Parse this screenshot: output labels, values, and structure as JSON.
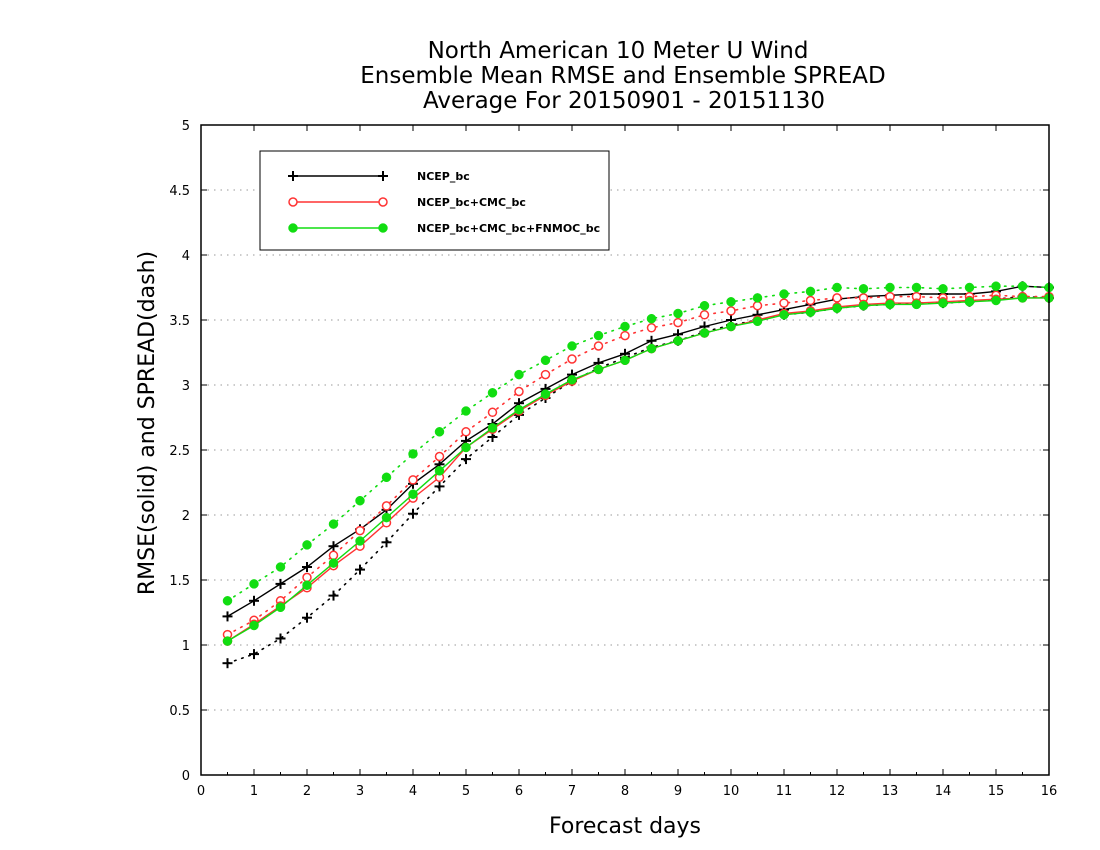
{
  "chart_data": {
    "type": "line",
    "title_lines": [
      "North American 10 Meter U Wind",
      "Ensemble Mean RMSE and Ensemble SPREAD",
      "Average For 20150901 - 20151130"
    ],
    "xlabel": "Forecast days",
    "ylabel": "RMSE(solid) and SPREAD(dash)",
    "xlim": [
      0,
      16
    ],
    "ylim": [
      0,
      5
    ],
    "x_ticks": [
      "0",
      "1",
      "2",
      "3",
      "4",
      "5",
      "6",
      "7",
      "8",
      "9",
      "10",
      "11",
      "12",
      "13",
      "14",
      "15",
      "16"
    ],
    "y_ticks": [
      "0",
      "0.5",
      "1",
      "1.5",
      "2",
      "2.5",
      "3",
      "3.5",
      "4",
      "4.5",
      "5"
    ],
    "grid": "horizontal dotted",
    "legend_position": "top-left",
    "x": [
      0.5,
      1,
      1.5,
      2,
      2.5,
      3,
      3.5,
      4,
      4.5,
      5,
      5.5,
      6,
      6.5,
      7,
      7.5,
      8,
      8.5,
      9,
      9.5,
      10,
      10.5,
      11,
      11.5,
      12,
      12.5,
      13,
      13.5,
      14,
      14.5,
      15,
      15.5,
      16
    ],
    "series": [
      {
        "name": "NCEP_bc",
        "color": "#000000",
        "marker": "plus",
        "rmse": [
          1.22,
          1.34,
          1.47,
          1.6,
          1.76,
          1.89,
          2.04,
          2.24,
          2.39,
          2.57,
          2.7,
          2.86,
          2.97,
          3.08,
          3.17,
          3.24,
          3.34,
          3.39,
          3.45,
          3.5,
          3.54,
          3.58,
          3.62,
          3.66,
          3.68,
          3.69,
          3.7,
          3.7,
          3.7,
          3.72,
          3.76,
          3.75
        ],
        "spread": [
          0.86,
          0.93,
          1.05,
          1.21,
          1.38,
          1.58,
          1.79,
          2.01,
          2.22,
          2.43,
          2.6,
          2.77,
          2.9,
          3.03,
          3.13,
          3.21,
          3.29,
          3.34,
          3.41,
          3.46,
          3.5,
          3.54,
          3.56,
          3.59,
          3.61,
          3.62,
          3.63,
          3.63,
          3.64,
          3.66,
          3.68,
          3.67
        ]
      },
      {
        "name": "NCEP_bc+CMC_bc",
        "color": "#ff3333",
        "marker": "open-circle",
        "rmse": [
          1.03,
          1.16,
          1.3,
          1.44,
          1.61,
          1.76,
          1.94,
          2.13,
          2.29,
          2.52,
          2.66,
          2.8,
          2.92,
          3.03,
          3.12,
          3.19,
          3.28,
          3.34,
          3.4,
          3.45,
          3.5,
          3.55,
          3.57,
          3.6,
          3.62,
          3.63,
          3.63,
          3.64,
          3.65,
          3.66,
          3.67,
          3.67
        ],
        "spread": [
          1.08,
          1.19,
          1.34,
          1.52,
          1.69,
          1.88,
          2.07,
          2.27,
          2.45,
          2.64,
          2.79,
          2.95,
          3.08,
          3.2,
          3.3,
          3.38,
          3.44,
          3.48,
          3.54,
          3.57,
          3.61,
          3.63,
          3.65,
          3.67,
          3.67,
          3.68,
          3.68,
          3.67,
          3.68,
          3.69,
          3.68,
          3.68
        ]
      },
      {
        "name": "NCEP_bc+CMC_bc+FNMOC_bc",
        "color": "#11dd11",
        "marker": "filled-circle",
        "rmse": [
          1.03,
          1.15,
          1.29,
          1.46,
          1.63,
          1.8,
          1.98,
          2.16,
          2.34,
          2.52,
          2.67,
          2.81,
          2.93,
          3.04,
          3.12,
          3.19,
          3.28,
          3.34,
          3.4,
          3.45,
          3.49,
          3.54,
          3.56,
          3.59,
          3.61,
          3.62,
          3.62,
          3.63,
          3.64,
          3.65,
          3.67,
          3.67
        ],
        "spread": [
          1.34,
          1.47,
          1.6,
          1.77,
          1.93,
          2.11,
          2.29,
          2.47,
          2.64,
          2.8,
          2.94,
          3.08,
          3.19,
          3.3,
          3.38,
          3.45,
          3.51,
          3.55,
          3.61,
          3.64,
          3.67,
          3.7,
          3.72,
          3.75,
          3.74,
          3.75,
          3.75,
          3.74,
          3.75,
          3.76,
          3.76,
          3.75
        ]
      }
    ]
  }
}
